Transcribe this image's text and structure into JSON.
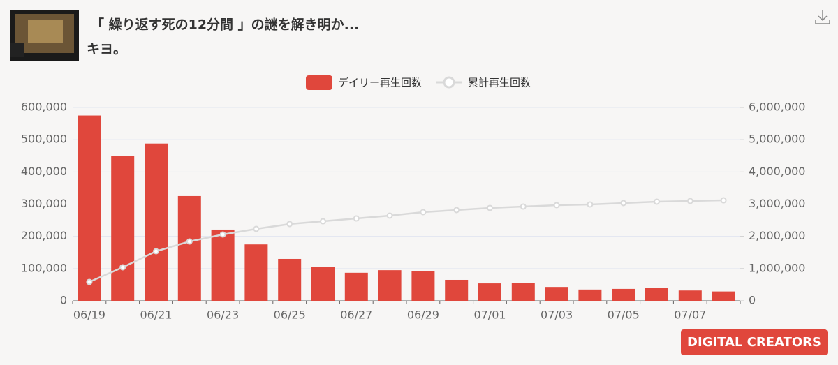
{
  "header": {
    "title": "「 繰り返す死の12分間 」の謎を解き明か...",
    "channel": "キヨ。"
  },
  "logo": "DIGITAL CREATORS",
  "chart_data": {
    "type": "combo",
    "categories": [
      "06/19",
      null,
      "06/21",
      null,
      "06/23",
      null,
      "06/25",
      null,
      "06/27",
      null,
      "06/29",
      null,
      "07/01",
      null,
      "07/03",
      null,
      "07/05",
      null,
      "07/07",
      null
    ],
    "series": [
      {
        "name": "デイリー再生回数",
        "type": "bar",
        "color": "#e0473c",
        "values": [
          575000,
          450000,
          488000,
          325000,
          221000,
          175000,
          130000,
          106000,
          87000,
          95000,
          93000,
          65000,
          54000,
          55000,
          43000,
          35000,
          37000,
          39000,
          32000,
          29000
        ]
      },
      {
        "name": "累計再生回数",
        "type": "line",
        "axis": "y2",
        "color": "#d9d9d9",
        "values": [
          585000,
          1040000,
          1538000,
          1841000,
          2058000,
          2231000,
          2383000,
          2469000,
          2556000,
          2643000,
          2751000,
          2816000,
          2881000,
          2924000,
          2968000,
          2990000,
          3033000,
          3076000,
          3097000,
          3119000
        ]
      }
    ],
    "ylim": [
      0,
      600000
    ],
    "yticks": [
      0,
      {
        "value": 100000,
        "label": "100,000"
      },
      {
        "value": 200000,
        "label": "200,000"
      },
      {
        "value": 300000,
        "label": "300,000"
      },
      {
        "value": 400000,
        "label": "400,000"
      },
      {
        "value": 500000,
        "label": "500,000"
      },
      {
        "value": 600000,
        "label": "600,000"
      }
    ],
    "y2lim": [
      0,
      6000000
    ],
    "y2ticks": [
      0,
      {
        "value": 1000000,
        "label": "1,000,000"
      },
      {
        "value": 2000000,
        "label": "2,000,000"
      },
      {
        "value": 3000000,
        "label": "3,000,000"
      },
      {
        "value": 4000000,
        "label": "4,000,000"
      },
      {
        "value": 5000000,
        "label": "5,000,000"
      },
      {
        "value": 6000000,
        "label": "6,000,000"
      }
    ],
    "grid": true
  }
}
